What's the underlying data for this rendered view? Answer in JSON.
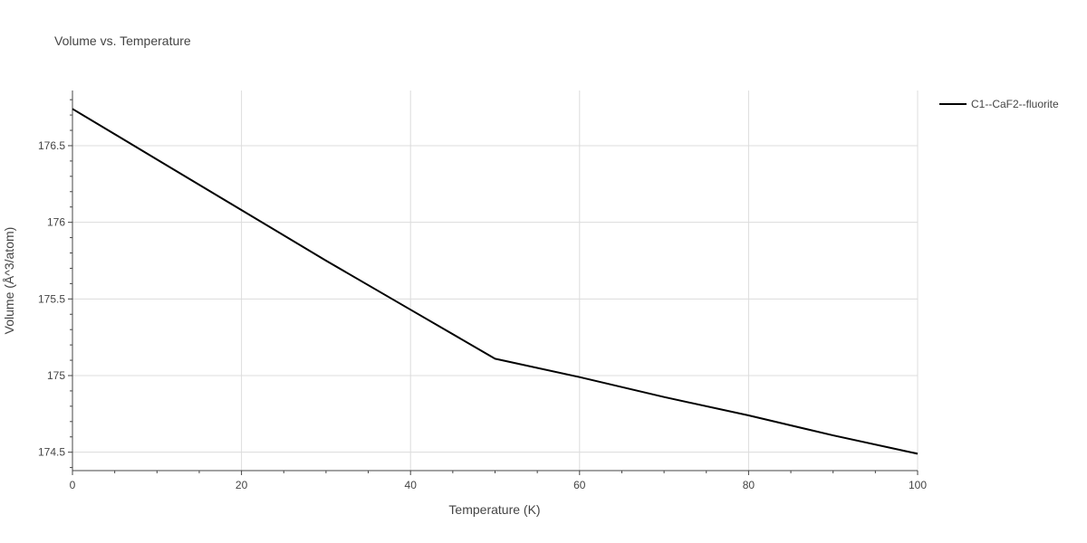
{
  "chart_data": {
    "type": "line",
    "title": "Volume vs. Temperature",
    "xlabel": "Temperature (K)",
    "ylabel": "Volume (Å^3/atom)",
    "xlim": [
      0,
      100
    ],
    "ylim": [
      174.38,
      176.86
    ],
    "x_ticks": [
      0,
      20,
      40,
      60,
      80,
      100
    ],
    "x_tick_labels": [
      "0",
      "20",
      "40",
      "60",
      "80",
      "100"
    ],
    "y_ticks": [
      174.5,
      175,
      175.5,
      176,
      176.5
    ],
    "y_tick_labels": [
      "174.5",
      "175",
      "175.5",
      "176",
      "176.5"
    ],
    "grid": true,
    "legend_position": "top-right",
    "series": [
      {
        "name": "C1--CaF2--fluorite",
        "color": "#000000",
        "x": [
          0,
          10,
          20,
          30,
          40,
          50,
          60,
          70,
          80,
          90,
          100
        ],
        "y": [
          176.74,
          176.41,
          176.08,
          175.75,
          175.43,
          175.11,
          174.99,
          174.86,
          174.74,
          174.61,
          174.49
        ]
      }
    ]
  }
}
